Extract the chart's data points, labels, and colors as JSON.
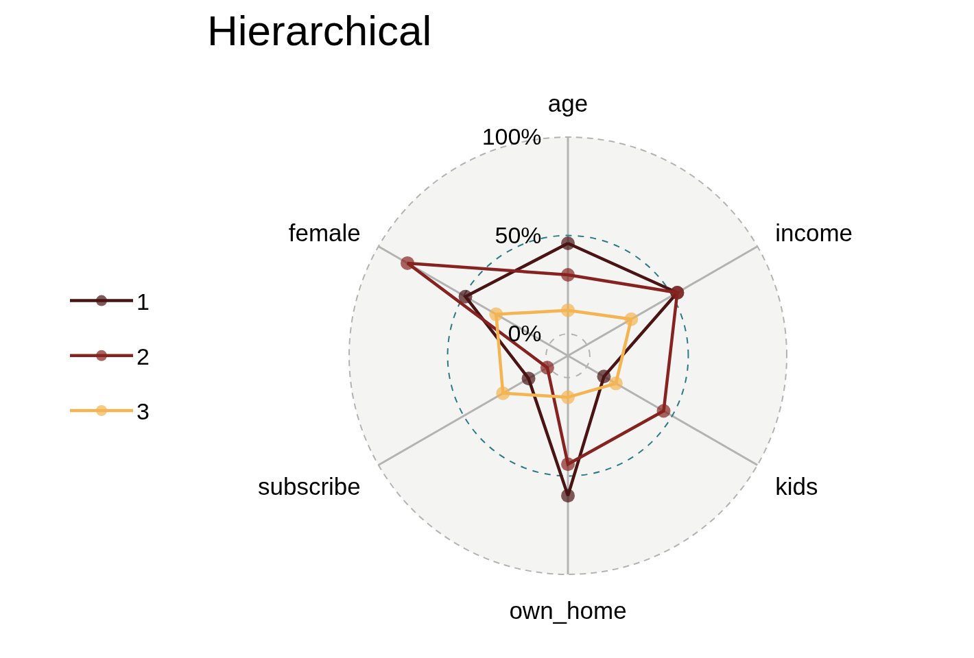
{
  "chart_data": {
    "type": "radar",
    "title": "Hierarchical",
    "categories": [
      "age",
      "income",
      "kids",
      "own_home",
      "subscribe",
      "female"
    ],
    "series": [
      {
        "name": "1",
        "color": "#4a1414",
        "values": [
          46,
          53,
          10,
          60,
          12,
          49
        ]
      },
      {
        "name": "2",
        "color": "#862320",
        "values": [
          30,
          53,
          45,
          44,
          1,
          83
        ]
      },
      {
        "name": "3",
        "color": "#f4b452",
        "values": [
          12,
          26,
          17,
          10,
          27,
          31
        ]
      }
    ],
    "ylim": [
      -11.1,
      100
    ],
    "yticks": [
      {
        "value": 0,
        "label": "0%"
      },
      {
        "value": 50,
        "label": "50%"
      },
      {
        "value": 100,
        "label": "100%"
      }
    ],
    "grid": true,
    "legend": "left",
    "marker": "circle",
    "line_style": "solid"
  }
}
